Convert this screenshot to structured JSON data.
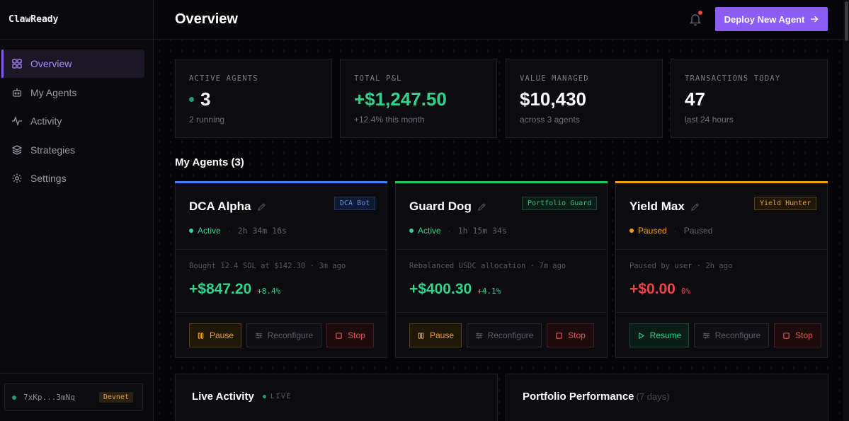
{
  "app": {
    "brand": "ClawReady"
  },
  "sidebar": {
    "items": [
      {
        "label": "Overview",
        "icon": "grid-icon"
      },
      {
        "label": "My Agents",
        "icon": "robot-icon"
      },
      {
        "label": "Activity",
        "icon": "pulse-icon"
      },
      {
        "label": "Strategies",
        "icon": "layers-icon"
      },
      {
        "label": "Settings",
        "icon": "gear-icon"
      }
    ],
    "wallet": {
      "address": "7xKp...3mNq",
      "network": "Devnet"
    }
  },
  "header": {
    "title": "Overview",
    "deploy_label": "Deploy New Agent"
  },
  "stats": [
    {
      "label": "ACTIVE AGENTS",
      "value": "3",
      "sub": "2 running"
    },
    {
      "label": "TOTAL P&L",
      "value": "+$1,247.50",
      "sub": "+12.4% this month"
    },
    {
      "label": "VALUE MANAGED",
      "value": "$10,430",
      "sub": "across 3 agents"
    },
    {
      "label": "TRANSACTIONS TODAY",
      "value": "47",
      "sub": "last 24 hours"
    }
  ],
  "agents_section": {
    "title": "My Agents (3)"
  },
  "agents": [
    {
      "name": "DCA Alpha",
      "tag": "DCA Bot",
      "status": "Active",
      "duration": "2h 34m 16s",
      "last": "Bought 12.4 SOL at $142.30 · 3m ago",
      "pnl": "+$847.20",
      "pct": "+8.4%",
      "primary": "Pause",
      "reconfigure": "Reconfigure",
      "stop": "Stop",
      "accent": "#3b82f6"
    },
    {
      "name": "Guard Dog",
      "tag": "Portfolio Guard",
      "status": "Active",
      "duration": "1h 15m 34s",
      "last": "Rebalanced USDC allocation · 7m ago",
      "pnl": "+$400.30",
      "pct": "+4.1%",
      "primary": "Pause",
      "reconfigure": "Reconfigure",
      "stop": "Stop",
      "accent": "#22c55e"
    },
    {
      "name": "Yield Max",
      "tag": "Yield Hunter",
      "status": "Paused",
      "duration": "Paused",
      "last": "Paused by user · 2h ago",
      "pnl": "+$0.00",
      "pct": "0%",
      "primary": "Resume",
      "reconfigure": "Reconfigure",
      "stop": "Stop",
      "accent": "#f59e0b"
    }
  ],
  "panels": {
    "activity": {
      "title": "Live Activity",
      "live": "LIVE"
    },
    "performance": {
      "title": "Portfolio Performance",
      "range": "(7 days)"
    }
  },
  "colors": {
    "accent": "#8b5cf6",
    "positive": "#2fd38c",
    "negative": "#ef4444",
    "warning": "#f59e0b"
  }
}
